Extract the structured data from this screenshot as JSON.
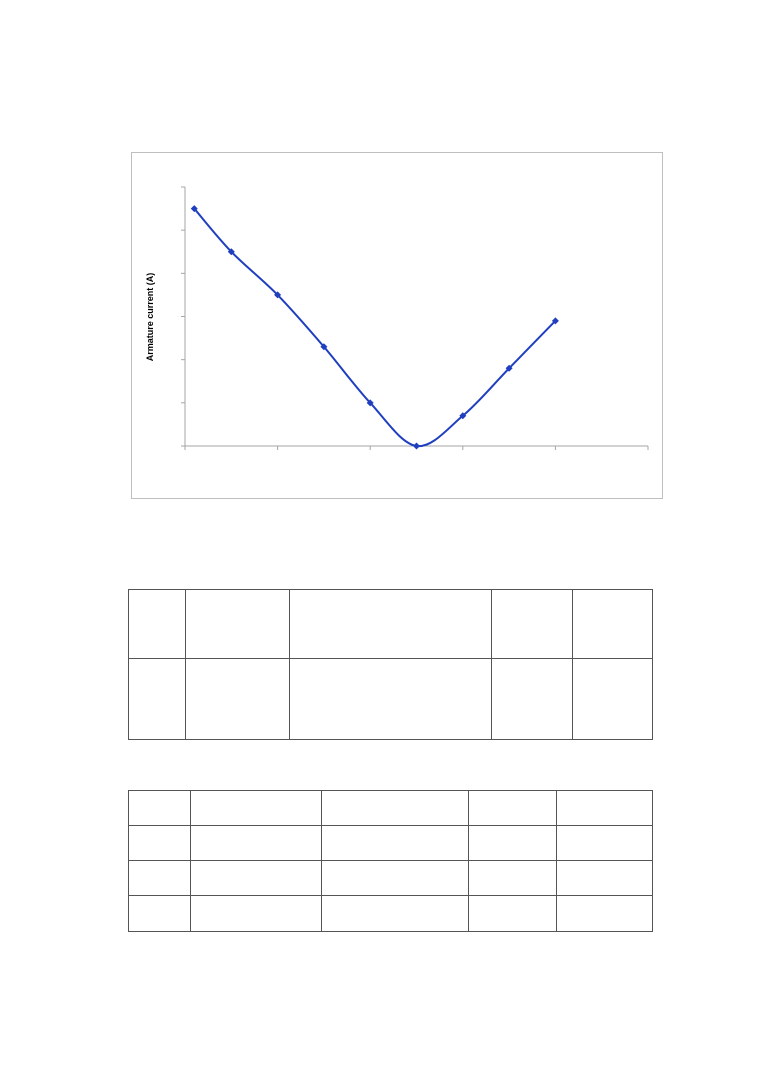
{
  "chart_data": {
    "type": "line",
    "title": "",
    "xlabel": "",
    "ylabel": "Armature current (A)",
    "x": [
      0.2,
      1,
      2,
      3,
      4,
      5,
      6,
      7,
      8
    ],
    "y": [
      5.5,
      4.5,
      3.5,
      2.3,
      1.0,
      0.0,
      0.7,
      1.8,
      2.9
    ],
    "xlim": [
      0,
      10
    ],
    "ylim": [
      0,
      6
    ],
    "grid": false,
    "legend": "none",
    "line_color": "#1f3fbf",
    "marker_color": "#1f3fbf",
    "marker": "diamond",
    "smooth": true
  },
  "tables": [
    {
      "rows": 2,
      "cols": 5,
      "cells": [
        [
          "",
          "",
          "",
          "",
          ""
        ],
        [
          "",
          "",
          "",
          "",
          ""
        ]
      ]
    },
    {
      "rows": 4,
      "cols": 5,
      "cells": [
        [
          "",
          "",
          "",
          "",
          ""
        ],
        [
          "",
          "",
          "",
          "",
          ""
        ],
        [
          "",
          "",
          "",
          "",
          ""
        ],
        [
          "",
          "",
          "",
          "",
          ""
        ]
      ]
    }
  ]
}
